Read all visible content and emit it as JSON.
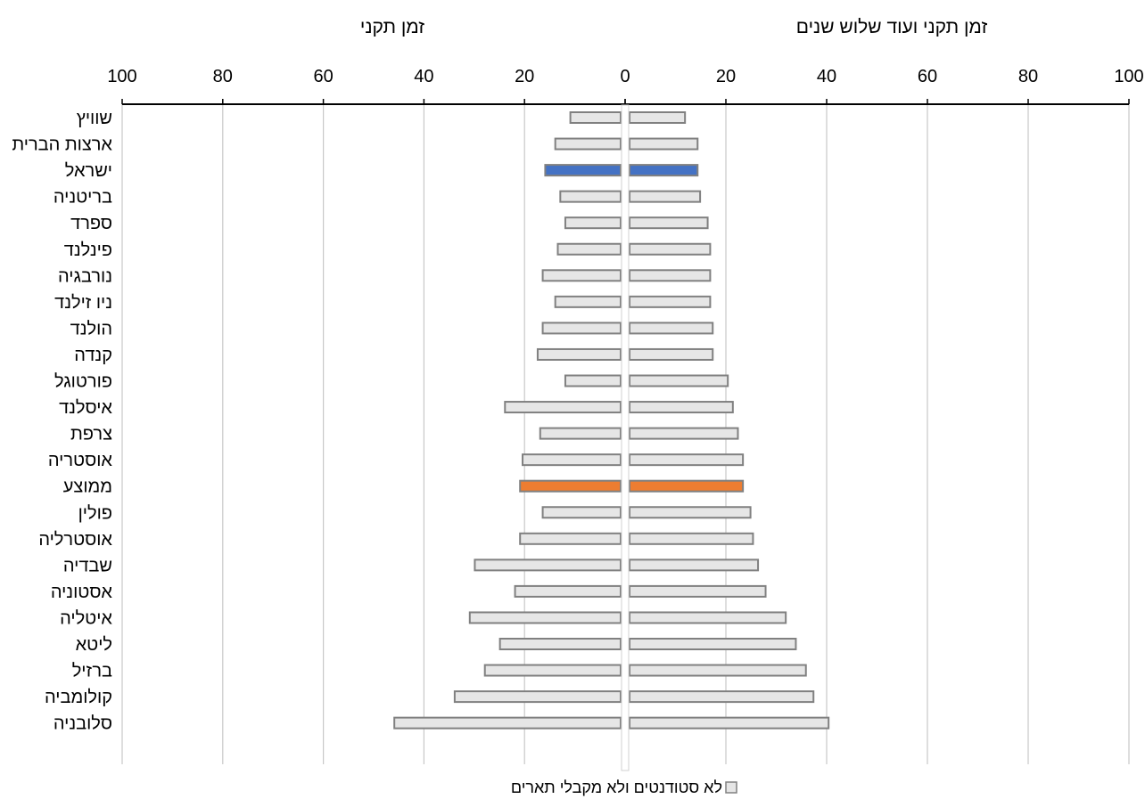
{
  "chart_data": {
    "type": "bar",
    "orientation": "horizontal",
    "layout": "back-to-back",
    "left_title": "זמן תקני",
    "right_title": "זמן תקני ועוד שלוש שנים",
    "xlim": [
      0,
      100
    ],
    "ticks": [
      0,
      20,
      40,
      60,
      80,
      100
    ],
    "grid": true,
    "legend_label": "לא סטודנטים ולא מקבלי תארים",
    "legend_position": "bottom-center",
    "colors": {
      "default": "#e6e6e6",
      "israel": "#4472c4",
      "average": "#ed7d31",
      "border": "#808080"
    },
    "categories": [
      "שוויץ",
      "ארצות הברית",
      "ישראל",
      "בריטניה",
      "ספרד",
      "פינלנד",
      "נורבגיה",
      "ניו זילנד",
      "הולנד",
      "קנדה",
      "פורטוגל",
      "איסלנד",
      "צרפת",
      "אוסטריה",
      "ממוצע",
      "פולין",
      "אוסטרליה",
      "שבדיה",
      "אסטוניה",
      "איטליה",
      "ליטא",
      "ברזיל",
      "קולומביה",
      "סלובניה"
    ],
    "highlight": {
      "ישראל": "israel",
      "ממוצע": "average"
    },
    "series": [
      {
        "side": "left",
        "values": [
          10,
          13,
          15,
          12,
          11,
          12.5,
          15.5,
          13,
          15.5,
          16.5,
          11,
          23,
          16,
          19.5,
          20,
          15.5,
          20,
          29,
          21,
          30,
          24,
          27,
          33,
          45
        ]
      },
      {
        "side": "right",
        "values": [
          11,
          13.5,
          13.5,
          14,
          15.5,
          16,
          16,
          16,
          16.5,
          16.5,
          19.5,
          20.5,
          21.5,
          22.5,
          22.5,
          24,
          24.5,
          25.5,
          27,
          31,
          33,
          35,
          36.5,
          39.5
        ]
      }
    ]
  }
}
